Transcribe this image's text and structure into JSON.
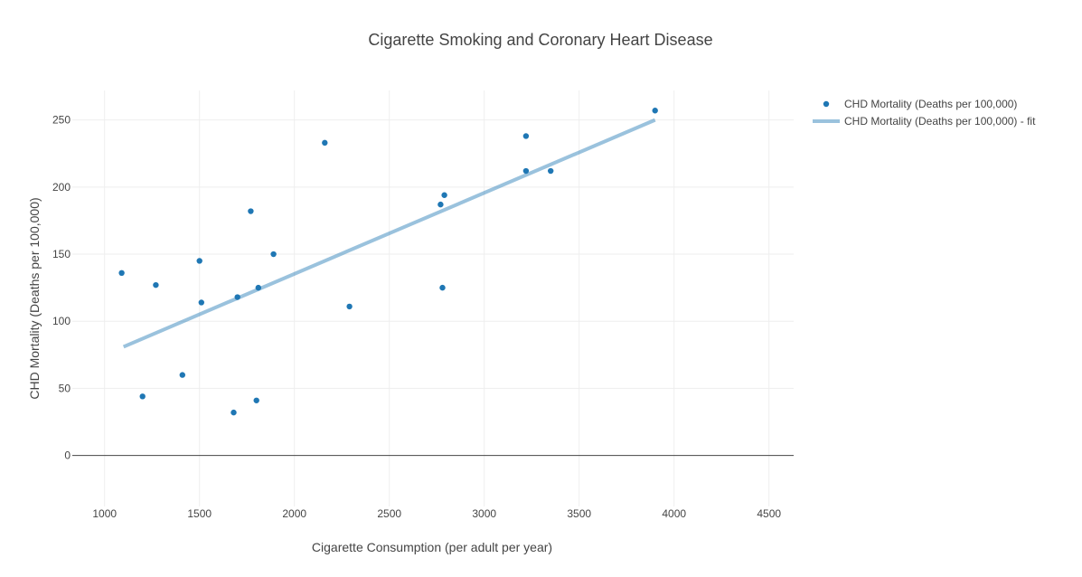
{
  "chart_data": {
    "type": "scatter",
    "title": "Cigarette Smoking and Coronary Heart Disease",
    "xlabel": "Cigarette Consumption (per adult per year)",
    "ylabel": "CHD Mortality (Deaths per 100,000)",
    "xlim": [
      830,
      4630
    ],
    "ylim": [
      -38,
      272
    ],
    "x_ticks": [
      1000,
      1500,
      2000,
      2500,
      3000,
      3500,
      4000,
      4500
    ],
    "y_ticks": [
      0,
      50,
      100,
      150,
      200,
      250
    ],
    "grid": true,
    "legend_position": "top-right",
    "series": [
      {
        "name": "CHD Mortality (Deaths per 100,000)",
        "mode": "markers",
        "color": "#1f77b4",
        "points": [
          {
            "x": 1090,
            "y": 136
          },
          {
            "x": 1200,
            "y": 44
          },
          {
            "x": 1270,
            "y": 127
          },
          {
            "x": 1410,
            "y": 60
          },
          {
            "x": 1500,
            "y": 145
          },
          {
            "x": 1510,
            "y": 114
          },
          {
            "x": 1680,
            "y": 32
          },
          {
            "x": 1700,
            "y": 118
          },
          {
            "x": 1770,
            "y": 182
          },
          {
            "x": 1800,
            "y": 41
          },
          {
            "x": 1810,
            "y": 125
          },
          {
            "x": 1890,
            "y": 150
          },
          {
            "x": 2160,
            "y": 233
          },
          {
            "x": 2290,
            "y": 111
          },
          {
            "x": 2770,
            "y": 187
          },
          {
            "x": 2780,
            "y": 125
          },
          {
            "x": 2790,
            "y": 194
          },
          {
            "x": 3220,
            "y": 212
          },
          {
            "x": 3220,
            "y": 238
          },
          {
            "x": 3350,
            "y": 212
          },
          {
            "x": 3900,
            "y": 257
          }
        ]
      },
      {
        "name": "CHD Mortality (Deaths per 100,000) - fit",
        "mode": "line",
        "color": "#1f77b4",
        "opacity": 0.45,
        "points": [
          {
            "x": 1100,
            "y": 81
          },
          {
            "x": 3900,
            "y": 250
          }
        ]
      }
    ]
  }
}
